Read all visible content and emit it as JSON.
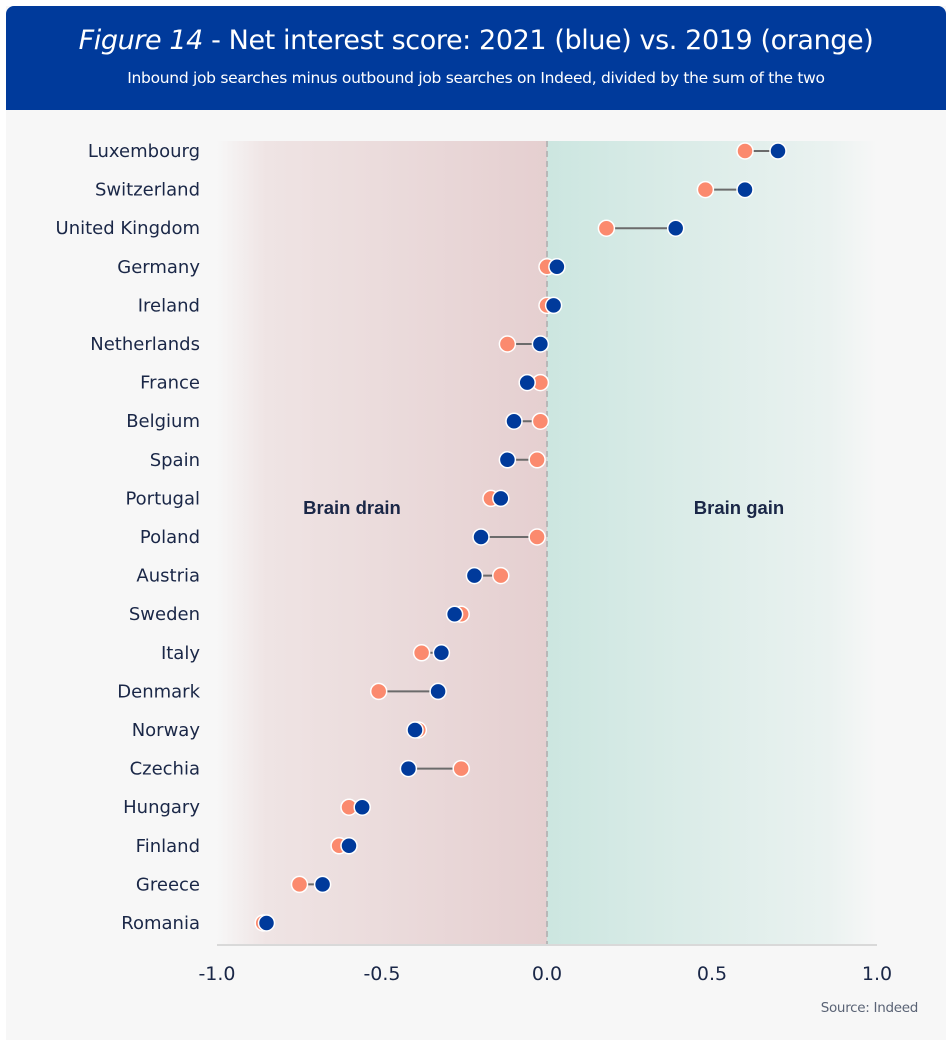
{
  "header": {
    "title_italic": "Figure 14",
    "title_rest": " - Net interest score: 2021 (blue) vs. 2019 (orange)",
    "subtitle": "Inbound job searches minus outbound job searches on Indeed, divided by the sum of the two"
  },
  "source": "Source: Indeed",
  "colors": {
    "blue_2021": "#003a9b",
    "orange_2019": "#fb8a6e",
    "connector": "#6b6b6b",
    "drain_shade": "#e5cfd0",
    "gain_shade": "#cce6e0",
    "label_text": "#1a2747"
  },
  "chart_data": {
    "type": "dumbbell",
    "title": "Figure 14 - Net interest score: 2021 (blue) vs. 2019 (orange)",
    "subtitle": "Inbound job searches minus outbound job searches on Indeed, divided by the sum of the two",
    "xlabel": "",
    "ylabel": "",
    "xlim": [
      -1.0,
      1.0
    ],
    "xticks": [
      -1.0,
      -0.5,
      0.0,
      0.5,
      1.0
    ],
    "xtick_labels": [
      "-1.0",
      "-0.5",
      "0.0",
      "0.5",
      "1.0"
    ],
    "grid": false,
    "legend": "in title (blue = 2021, orange = 2019)",
    "annotations": [
      {
        "text": "Brain drain",
        "region": "negative"
      },
      {
        "text": "Brain gain",
        "region": "positive"
      }
    ],
    "categories": [
      "Luxembourg",
      "Switzerland",
      "United Kingdom",
      "Germany",
      "Ireland",
      "Netherlands",
      "France",
      "Belgium",
      "Spain",
      "Portugal",
      "Poland",
      "Austria",
      "Sweden",
      "Italy",
      "Denmark",
      "Norway",
      "Czechia",
      "Hungary",
      "Finland",
      "Greece",
      "Romania"
    ],
    "series": [
      {
        "name": "2019",
        "color": "orange",
        "values": [
          0.6,
          0.48,
          0.18,
          0.0,
          0.0,
          -0.12,
          -0.02,
          -0.02,
          -0.03,
          -0.17,
          -0.03,
          -0.14,
          -0.26,
          -0.38,
          -0.51,
          -0.39,
          -0.26,
          -0.6,
          -0.63,
          -0.75,
          -0.86
        ]
      },
      {
        "name": "2021",
        "color": "blue",
        "values": [
          0.7,
          0.6,
          0.39,
          0.03,
          0.02,
          -0.02,
          -0.06,
          -0.1,
          -0.12,
          -0.14,
          -0.2,
          -0.22,
          -0.28,
          -0.32,
          -0.33,
          -0.4,
          -0.42,
          -0.56,
          -0.6,
          -0.68,
          -0.85
        ]
      }
    ]
  }
}
